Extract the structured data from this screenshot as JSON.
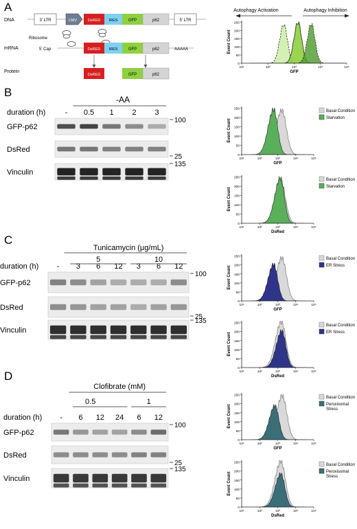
{
  "panels": {
    "A": "A",
    "B": "B",
    "C": "C",
    "D": "D"
  },
  "panelA": {
    "row_dna": "DNA",
    "row_mrna": "mRNA",
    "row_protein": "Protein",
    "ltr3": "3' LTR",
    "cmv": "CMV",
    "dsred": "DsRED",
    "ires": "IRES",
    "gfp": "GFP",
    "p62": "p62",
    "ltr5": "5' LTR",
    "ribosome": "Ribosome",
    "cap": "5' Cap",
    "polya": "AAAAA"
  },
  "histA": {
    "activation": "Autophagy Activation",
    "inhibition": "Autophagy Inhibition",
    "ylabel": "Event Count",
    "xlabel": "GFP"
  },
  "blotB": {
    "condition": "-AA",
    "duration_label": "duration (h)",
    "lanes": [
      "-",
      "0.5",
      "1",
      "2",
      "3"
    ],
    "rows": [
      "GFP-p62",
      "DsRed",
      "Vinculin"
    ],
    "markers": [
      "100",
      "25",
      "135"
    ],
    "gfp_intensity": [
      0.75,
      0.8,
      0.55,
      0.45,
      0.3
    ],
    "dsred_intensity": [
      0.55,
      0.55,
      0.5,
      0.5,
      0.5
    ],
    "vinc_intensity": [
      0.95,
      0.95,
      0.95,
      0.95,
      0.95
    ]
  },
  "blotC": {
    "treatment": "Tunicamycin (μg/mL)",
    "dose1": "5",
    "dose2": "10",
    "duration_label": "duration (h)",
    "lanes": [
      "-",
      "3",
      "6",
      "12",
      "3",
      "6",
      "12"
    ],
    "rows": [
      "GFP-p62",
      "DsRed",
      "Vinculin"
    ],
    "markers": [
      "100",
      "25",
      "135"
    ],
    "gfp_intensity": [
      0.5,
      0.45,
      0.35,
      0.3,
      0.3,
      0.3,
      0.45
    ],
    "dsred_intensity": [
      0.45,
      0.4,
      0.35,
      0.35,
      0.3,
      0.35,
      0.4
    ],
    "vinc_intensity": [
      0.9,
      0.9,
      0.9,
      0.9,
      0.9,
      0.9,
      0.9
    ]
  },
  "blotD": {
    "treatment": "Clofibrate (mM)",
    "dose1": "0.5",
    "dose2": "1",
    "duration_label": "duration (h)",
    "lanes": [
      "-",
      "6",
      "12",
      "24",
      "6",
      "12"
    ],
    "rows": [
      "GFP-p62",
      "DsRed",
      "Vinculin"
    ],
    "markers": [
      "100",
      "25",
      "135"
    ],
    "gfp_intensity": [
      0.55,
      0.4,
      0.35,
      0.35,
      0.45,
      0.6
    ],
    "dsred_intensity": [
      0.45,
      0.45,
      0.45,
      0.45,
      0.5,
      0.5
    ],
    "vinc_intensity": [
      0.85,
      0.85,
      0.85,
      0.85,
      0.85,
      0.85
    ]
  },
  "hist_common": {
    "ylabel": "Event Count",
    "yticks": [
      "0",
      "50",
      "100",
      "150",
      "200",
      "250"
    ],
    "xticks": [
      "10¹",
      "10²",
      "10³",
      "10⁴",
      "10⁵"
    ],
    "basal": "Basal Condition"
  },
  "colors": {
    "dsred": "#d6201f",
    "ires": "#7fd0f0",
    "gfp": "#8fd03f",
    "p62": "#d4d4d4",
    "cmv": "#6f7d93",
    "starvation": "#5ab05a",
    "er": "#2e3589",
    "perox": "#3b6f78",
    "basal": "#d9d9d9"
  },
  "chart_data": [
    {
      "type": "area",
      "xlabel": "GFP",
      "ylabel": "Event Count",
      "xscale": "log",
      "xlim": [
        10,
        100000
      ],
      "ylim": [
        0,
        260
      ],
      "series": [
        {
          "name": "",
          "peak_x": 400,
          "peak_y": 235
        },
        {
          "name": "",
          "peak_x": 1400,
          "peak_y": 250
        },
        {
          "name": "",
          "peak_x": 4500,
          "peak_y": 240
        }
      ]
    },
    {
      "type": "area",
      "xlabel": "GFP",
      "ylabel": "Event Count",
      "xscale": "log",
      "xlim": [
        10,
        100000
      ],
      "ylim": [
        0,
        260
      ],
      "series": [
        {
          "name": "Basal Condition",
          "peak_x": 1700,
          "peak_y": 240
        },
        {
          "name": "Starvation",
          "peak_x": 600,
          "peak_y": 245
        }
      ]
    },
    {
      "type": "area",
      "xlabel": "DsRed",
      "ylabel": "Event Count",
      "xscale": "log",
      "xlim": [
        10,
        100000
      ],
      "ylim": [
        0,
        260
      ],
      "series": [
        {
          "name": "Basal Condition",
          "peak_x": 1500,
          "peak_y": 230
        },
        {
          "name": "Starvation",
          "peak_x": 1400,
          "peak_y": 245
        }
      ]
    },
    {
      "type": "area",
      "xlabel": "GFP",
      "ylabel": "Event Count",
      "xscale": "log",
      "xlim": [
        10,
        100000
      ],
      "ylim": [
        0,
        260
      ],
      "series": [
        {
          "name": "Basal Condition",
          "peak_x": 1700,
          "peak_y": 240
        },
        {
          "name": "ER Stress",
          "peak_x": 600,
          "peak_y": 205
        }
      ]
    },
    {
      "type": "area",
      "xlabel": "DsRed",
      "ylabel": "Event Count",
      "xscale": "log",
      "xlim": [
        10,
        100000
      ],
      "ylim": [
        0,
        260
      ],
      "series": [
        {
          "name": "Basal Condition",
          "peak_x": 1600,
          "peak_y": 255
        },
        {
          "name": "ER Stress",
          "peak_x": 1700,
          "peak_y": 205
        }
      ]
    },
    {
      "type": "area",
      "xlabel": "GFP",
      "ylabel": "Event Count",
      "xscale": "log",
      "xlim": [
        10,
        100000
      ],
      "ylim": [
        0,
        260
      ],
      "series": [
        {
          "name": "Basal Condition",
          "peak_x": 1800,
          "peak_y": 245
        },
        {
          "name": "Peroxisomal Stress",
          "peak_x": 700,
          "peak_y": 190
        }
      ]
    },
    {
      "type": "area",
      "xlabel": "DsRed",
      "ylabel": "Event Count",
      "xscale": "log",
      "xlim": [
        10,
        100000
      ],
      "ylim": [
        0,
        260
      ],
      "series": [
        {
          "name": "Basal Condition",
          "peak_x": 1500,
          "peak_y": 255
        },
        {
          "name": "Peroxisomal Stress",
          "peak_x": 1500,
          "peak_y": 185
        }
      ]
    }
  ]
}
